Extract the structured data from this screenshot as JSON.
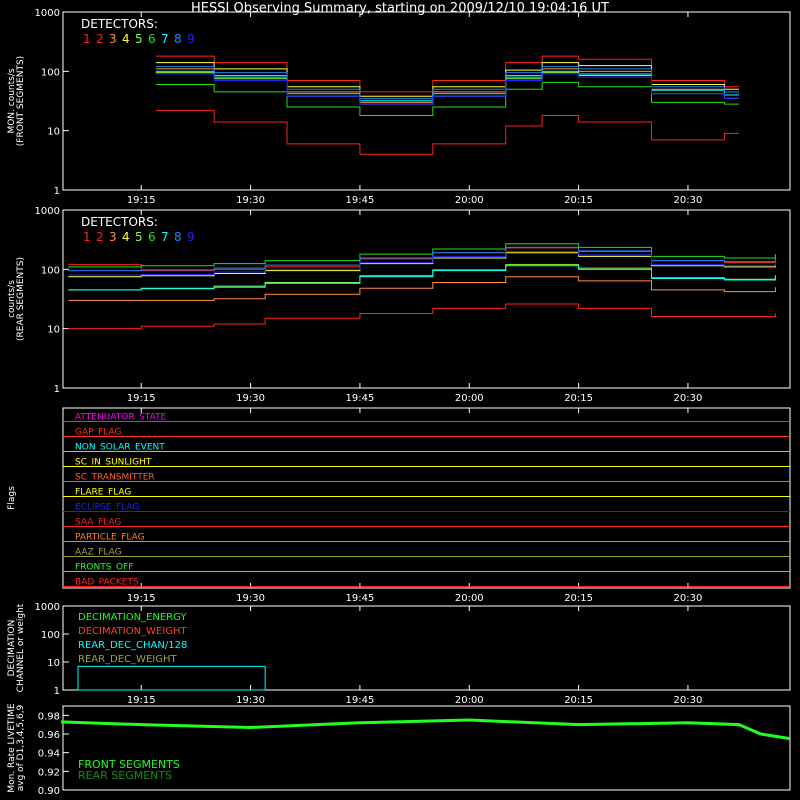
{
  "title": "HESSI Observing Summary, starting on 2009/12/10 19:04:16 UT",
  "colors": {
    "bg": "#000000",
    "axis": "#ffffff",
    "detectors": [
      "#ff2020",
      "#ff2020",
      "#ff9040",
      "#ffff40",
      "#80ff40",
      "#20e020",
      "#00ffff",
      "#2080ff",
      "#2020ff"
    ],
    "flags": [
      "#ff00ff",
      "#ff3020",
      "#00ffff",
      "#ffff00",
      "#ff6020",
      "#ffff00",
      "#2020ff",
      "#ff2020",
      "#ff8020",
      "#a0a040",
      "#20ff20",
      "#ff2020"
    ]
  },
  "chart_data": [
    {
      "type": "line",
      "name": "front",
      "ylabel": [
        "MON. counts/s",
        "(FRONT SEGMENTS)"
      ],
      "yscale": "log",
      "ylim": [
        1,
        1000
      ],
      "yticks": [
        "1",
        "10",
        "100",
        "1000"
      ],
      "xlim": [
        "19:04:16",
        "20:44:00"
      ],
      "xticks": [
        "19:15",
        "19:30",
        "19:45",
        "20:00",
        "20:15",
        "20:30"
      ],
      "legend_title": "DETECTORS:",
      "legend_labels": [
        "1",
        "2",
        "3",
        "4",
        "5",
        "6",
        "7",
        "8",
        "9"
      ],
      "x": [
        "19:17",
        "19:25",
        "19:35",
        "19:45",
        "19:55",
        "20:05",
        "20:10",
        "20:15",
        "20:25",
        "20:35",
        "20:37"
      ],
      "series": [
        {
          "name": "1",
          "values": [
            180,
            140,
            70,
            45,
            70,
            140,
            180,
            160,
            70,
            55,
            55
          ]
        },
        {
          "name": "2",
          "values": [
            22,
            14,
            6,
            4,
            6,
            12,
            18,
            14,
            7,
            9,
            9
          ]
        },
        {
          "name": "3",
          "values": [
            110,
            85,
            45,
            30,
            45,
            85,
            110,
            100,
            50,
            40,
            40
          ]
        },
        {
          "name": "4",
          "values": [
            140,
            110,
            55,
            38,
            55,
            105,
            140,
            125,
            60,
            50,
            50
          ]
        },
        {
          "name": "5",
          "values": [
            95,
            75,
            38,
            28,
            38,
            75,
            95,
            85,
            42,
            35,
            35
          ]
        },
        {
          "name": "6",
          "values": [
            60,
            45,
            25,
            18,
            25,
            50,
            65,
            55,
            30,
            28,
            28
          ]
        },
        {
          "name": "7",
          "values": [
            100,
            80,
            42,
            32,
            42,
            80,
            100,
            90,
            48,
            40,
            40
          ]
        },
        {
          "name": "8",
          "values": [
            120,
            95,
            50,
            35,
            50,
            95,
            120,
            110,
            55,
            45,
            45
          ]
        },
        {
          "name": "9",
          "values": [
            90,
            70,
            38,
            28,
            38,
            70,
            90,
            80,
            42,
            35,
            35
          ]
        }
      ]
    },
    {
      "type": "line",
      "name": "rear",
      "ylabel": [
        "counts/s",
        "(REAR SEGMENTS)"
      ],
      "yscale": "log",
      "ylim": [
        1,
        1000
      ],
      "yticks": [
        "1",
        "10",
        "100",
        "1000"
      ],
      "xlim": [
        "19:04:16",
        "20:44:00"
      ],
      "xticks": [
        "19:15",
        "19:30",
        "19:45",
        "20:00",
        "20:15",
        "20:30"
      ],
      "legend_title": "DETECTORS:",
      "legend_labels": [
        "1",
        "2",
        "3",
        "4",
        "5",
        "6",
        "7",
        "8",
        "9"
      ],
      "x": [
        "19:05",
        "19:15",
        "19:25",
        "19:32",
        "19:45",
        "19:55",
        "20:05",
        "20:15",
        "20:25",
        "20:35",
        "20:42"
      ],
      "series": [
        {
          "name": "1",
          "values": [
            120,
            95,
            100,
            110,
            150,
            190,
            230,
            200,
            140,
            130,
            150
          ]
        },
        {
          "name": "2",
          "values": [
            10,
            11,
            12,
            15,
            18,
            22,
            26,
            22,
            16,
            16,
            18
          ]
        },
        {
          "name": "3",
          "values": [
            30,
            30,
            32,
            38,
            48,
            60,
            75,
            64,
            45,
            42,
            50
          ]
        },
        {
          "name": "4",
          "values": [
            75,
            78,
            85,
            95,
            125,
            155,
            190,
            165,
            115,
            110,
            125
          ]
        },
        {
          "name": "5",
          "values": [
            45,
            48,
            52,
            60,
            78,
            98,
            120,
            105,
            72,
            68,
            80
          ]
        },
        {
          "name": "6",
          "values": [
            110,
            115,
            125,
            140,
            180,
            220,
            270,
            235,
            165,
            155,
            180
          ]
        },
        {
          "name": "7",
          "values": [
            45,
            47,
            50,
            58,
            75,
            95,
            115,
            100,
            70,
            66,
            78
          ]
        },
        {
          "name": "8",
          "values": [
            95,
            98,
            105,
            118,
            155,
            190,
            235,
            205,
            140,
            135,
            155
          ]
        },
        {
          "name": "9",
          "values": [
            80,
            82,
            90,
            100,
            130,
            165,
            200,
            175,
            120,
            115,
            135
          ]
        }
      ]
    },
    {
      "type": "line",
      "name": "flags",
      "ylabel": [
        "Flags"
      ],
      "xlim": [
        "19:04:16",
        "20:44:00"
      ],
      "xticks": [
        "19:15",
        "19:30",
        "19:45",
        "20:00",
        "20:15",
        "20:30"
      ],
      "flags": [
        "ATTENUATOR_STATE",
        "GAP_FLAG",
        "NON_SOLAR_EVENT",
        "SC_IN_SUNLIGHT",
        "SC_TRANSMITTER",
        "FLARE_FLAG",
        "ECLIPSE_FLAG",
        "SAA_FLAG",
        "PARTICLE_FLAG",
        "AAZ_FLAG",
        "FRONTS_OFF",
        "BAD_PACKETS"
      ]
    },
    {
      "type": "line",
      "name": "decimation",
      "ylabel": [
        "DECIMATION",
        "CHANNEL or weight"
      ],
      "yscale": "log",
      "ylim": [
        1,
        1000
      ],
      "yticks": [
        "1",
        "10",
        "100",
        "1000"
      ],
      "xlim": [
        "19:04:16",
        "20:44:00"
      ],
      "xticks": [
        "19:15",
        "19:30",
        "19:45",
        "20:00",
        "20:15",
        "20:30"
      ],
      "legend": [
        "DECIMATION_ENERGY",
        "DECIMATION_WEIGHT",
        "REAR_DEC_CHAN/128",
        "REAR_DEC_WEIGHT"
      ],
      "legend_colors": [
        "#20ff20",
        "#ff4020",
        "#00ffff",
        "#a0a040"
      ]
    },
    {
      "type": "line",
      "name": "livetime",
      "ylabel": [
        "Mon. Rate LIVETIME",
        "avg of D1,3,4,5,6,9"
      ],
      "ylim": [
        0.9,
        0.99
      ],
      "yticks": [
        "0.90",
        "0.92",
        "0.94",
        "0.96",
        "0.98"
      ],
      "xlim": [
        "19:04:16",
        "20:44:00"
      ],
      "legend": [
        "FRONT SEGMENTS",
        "REAR SEGMENTS"
      ],
      "legend_colors": [
        "#20ff20",
        "#109010"
      ],
      "x": [
        "19:04",
        "19:15",
        "19:30",
        "19:45",
        "20:00",
        "20:15",
        "20:30",
        "20:37",
        "20:40",
        "20:44"
      ],
      "series": [
        {
          "name": "FRONT SEGMENTS",
          "values": [
            0.973,
            0.97,
            0.967,
            0.972,
            0.975,
            0.97,
            0.972,
            0.97,
            0.96,
            0.955
          ]
        }
      ]
    }
  ]
}
